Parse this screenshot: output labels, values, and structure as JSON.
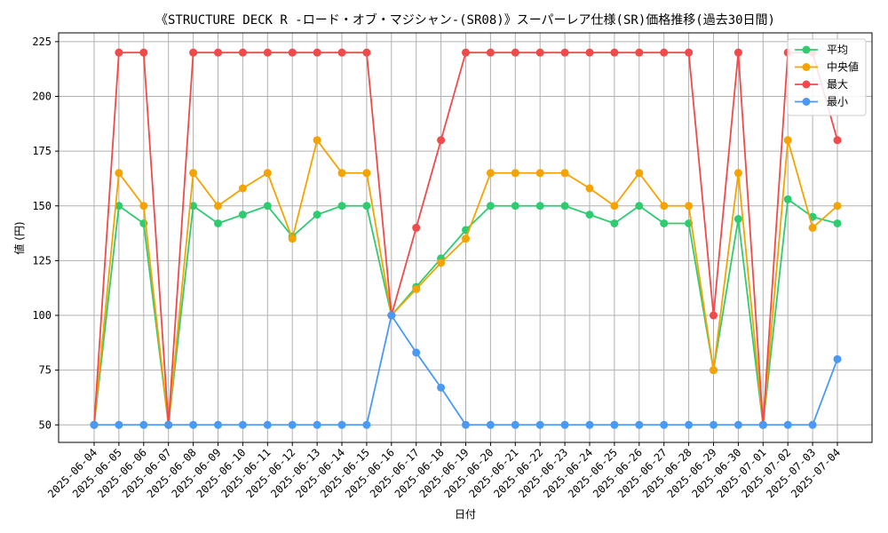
{
  "chart_data": {
    "type": "line",
    "title": "《STRUCTURE DECK R -ロード・オブ・マジシャン-(SR08)》スーパーレア仕様(SR)価格推移(過去30日間)",
    "xlabel": "日付",
    "ylabel": "値 (円)",
    "ylim": [
      42,
      229
    ],
    "yticks": [
      50,
      75,
      100,
      125,
      150,
      175,
      200,
      225
    ],
    "grid": true,
    "legend_position": "top-right",
    "categories": [
      "2025-06-04",
      "2025-06-05",
      "2025-06-06",
      "2025-06-07",
      "2025-06-08",
      "2025-06-09",
      "2025-06-10",
      "2025-06-11",
      "2025-06-12",
      "2025-06-13",
      "2025-06-14",
      "2025-06-15",
      "2025-06-16",
      "2025-06-17",
      "2025-06-18",
      "2025-06-19",
      "2025-06-20",
      "2025-06-21",
      "2025-06-22",
      "2025-06-23",
      "2025-06-24",
      "2025-06-25",
      "2025-06-26",
      "2025-06-27",
      "2025-06-28",
      "2025-06-29",
      "2025-06-30",
      "2025-07-01",
      "2025-07-02",
      "2025-07-03",
      "2025-07-04"
    ],
    "series": [
      {
        "name": "平均",
        "color": "#2ecc71",
        "values": [
          50,
          150,
          142,
          50,
          150,
          142,
          146,
          150,
          136,
          146,
          150,
          150,
          100,
          113,
          126,
          139,
          150,
          150,
          150,
          150,
          146,
          142,
          150,
          142,
          142,
          75,
          144,
          50,
          153,
          145,
          142
        ]
      },
      {
        "name": "中央値",
        "color": "#f5a300",
        "values": [
          50,
          165,
          150,
          50,
          165,
          150,
          158,
          165,
          135,
          180,
          165,
          165,
          100,
          112,
          124,
          135,
          165,
          165,
          165,
          165,
          158,
          150,
          165,
          150,
          150,
          75,
          165,
          50,
          180,
          140,
          150
        ]
      },
      {
        "name": "最大",
        "color": "#f04a4a",
        "values": [
          50,
          220,
          220,
          50,
          220,
          220,
          220,
          220,
          220,
          220,
          220,
          220,
          100,
          140,
          180,
          220,
          220,
          220,
          220,
          220,
          220,
          220,
          220,
          220,
          220,
          100,
          220,
          50,
          220,
          220,
          180
        ]
      },
      {
        "name": "最小",
        "color": "#4a99f5",
        "values": [
          50,
          50,
          50,
          50,
          50,
          50,
          50,
          50,
          50,
          50,
          50,
          50,
          100,
          83,
          67,
          50,
          50,
          50,
          50,
          50,
          50,
          50,
          50,
          50,
          50,
          50,
          50,
          50,
          50,
          50,
          80
        ]
      }
    ]
  }
}
